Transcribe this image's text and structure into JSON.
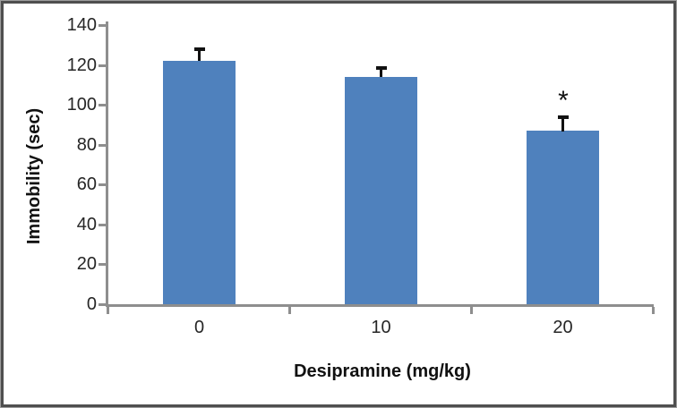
{
  "frame": {
    "border_color": "#4f4f4f",
    "background": "#ffffff"
  },
  "chart_data": {
    "type": "bar",
    "categories": [
      "0",
      "10",
      "20"
    ],
    "values": [
      122,
      114,
      87
    ],
    "errors_plus": [
      6,
      4.5,
      7
    ],
    "xlabel": "Desipramine (mg/kg)",
    "ylabel": "Immobility (sec)",
    "ylim": [
      0,
      140
    ],
    "yticks": [
      0,
      20,
      40,
      60,
      80,
      100,
      120,
      140
    ],
    "grid": "off",
    "legend": "none",
    "bar_color": "#4F81BD",
    "axis_color": "#8E8E8E",
    "error_bar_color": "#111111",
    "annotations": [
      {
        "category_index": 2,
        "text": "*"
      }
    ]
  }
}
